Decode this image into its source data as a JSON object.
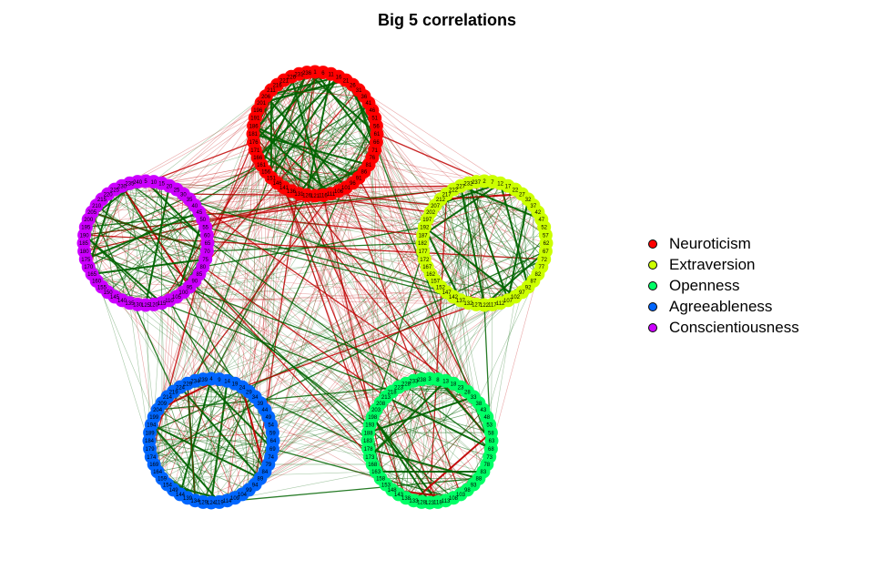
{
  "title": "Big 5 correlations",
  "edge_colors": {
    "positive": "#006400",
    "negative": "#c00000"
  },
  "legend": [
    {
      "label": "Neuroticism",
      "color": "#ff0000"
    },
    {
      "label": "Extraversion",
      "color": "#ccff00"
    },
    {
      "label": "Openness",
      "color": "#00ff66"
    },
    {
      "label": "Agreeableness",
      "color": "#0066ff"
    },
    {
      "label": "Conscientiousness",
      "color": "#cc00ff"
    }
  ],
  "groups": [
    {
      "name": "Neuroticism",
      "color": "#ff0000",
      "start": 1
    },
    {
      "name": "Extraversion",
      "color": "#ccff00",
      "start": 2
    },
    {
      "name": "Openness",
      "color": "#00ff66",
      "start": 3
    },
    {
      "name": "Agreeableness",
      "color": "#0066ff",
      "start": 4
    },
    {
      "name": "Conscientiousness",
      "color": "#cc00ff",
      "start": 5
    }
  ],
  "items_per_group": 48,
  "item_step": 5
}
